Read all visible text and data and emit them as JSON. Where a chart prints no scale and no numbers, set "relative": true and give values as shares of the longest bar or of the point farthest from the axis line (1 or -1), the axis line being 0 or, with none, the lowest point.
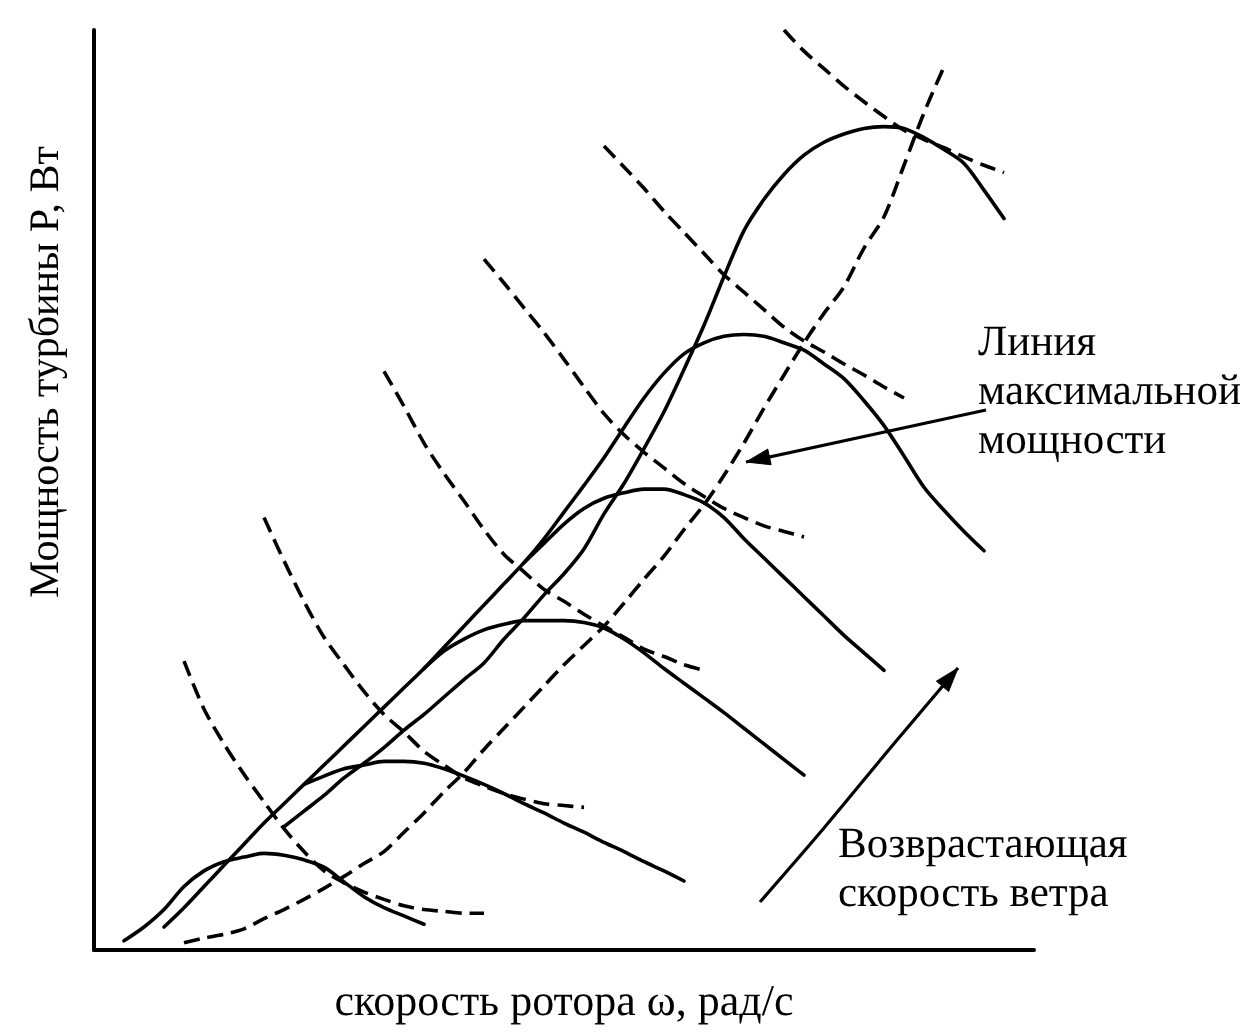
{
  "chart_data": {
    "type": "line",
    "relative": true,
    "xlabel": "скорость ротора ω, рад/с",
    "ylabel": "Мощность турбины P, Вт",
    "annotations": [
      "Линия максимальной мощности",
      "Возврастающая скорость ветра"
    ],
    "categories": [
      null,
      null,
      null,
      null,
      null,
      null,
      null,
      null,
      null,
      null,
      null,
      null,
      null,
      null,
      null,
      null,
      null,
      null,
      null,
      null,
      null,
      null,
      null,
      null,
      null,
      null,
      null,
      null,
      null,
      null,
      null,
      null,
      null,
      null,
      null,
      null,
      null,
      null,
      null,
      null,
      null,
      null,
      null,
      null,
      null,
      null,
      null
    ],
    "series": [
      {
        "color": "#000000",
        "line_style": "solid",
        "values": [
          null,
          0.01,
          0.025,
          0.044,
          0.069,
          0.086,
          0.096,
          0.101,
          0.105,
          0.103,
          0.098,
          0.09,
          0.074,
          0.058,
          0.046,
          0.037,
          0.028,
          null,
          null,
          null,
          null,
          null,
          null,
          null,
          null,
          null,
          null,
          null,
          null,
          null,
          null,
          null,
          null,
          null,
          null,
          null,
          null,
          null,
          null,
          null,
          null,
          null,
          null,
          null,
          null,
          null,
          null
        ]
      },
      {
        "color": "#000000",
        "line_style": "solid",
        "values": [
          null,
          null,
          null,
          null,
          null,
          null,
          null,
          null,
          null,
          null,
          0.18,
          0.189,
          0.197,
          0.201,
          0.205,
          0.205,
          0.203,
          0.197,
          0.189,
          0.18,
          0.17,
          0.159,
          0.149,
          0.138,
          0.128,
          0.117,
          0.107,
          0.096,
          0.086,
          0.075,
          null,
          null,
          null,
          null,
          null,
          null,
          null,
          null,
          null,
          null,
          null,
          null,
          null,
          null,
          null,
          null,
          null
        ]
      },
      {
        "color": "#000000",
        "line_style": "solid",
        "values": [
          null,
          null,
          null,
          null,
          null,
          null,
          null,
          null,
          null,
          null,
          null,
          null,
          null,
          null,
          null,
          null,
          0.306,
          0.325,
          0.338,
          0.348,
          0.354,
          0.358,
          0.358,
          0.358,
          0.356,
          0.35,
          0.338,
          0.323,
          0.306,
          0.29,
          0.274,
          0.258,
          0.241,
          0.224,
          0.207,
          0.19,
          null,
          null,
          null,
          null,
          null,
          null,
          null,
          null,
          null,
          null,
          null
        ]
      },
      {
        "color": "#000000",
        "line_style": "solid",
        "values": [
          null,
          null,
          null,
          null,
          null,
          null,
          null,
          null,
          null,
          null,
          null,
          null,
          null,
          null,
          null,
          null,
          null,
          null,
          null,
          null,
          null,
          0.421,
          0.442,
          0.463,
          0.48,
          0.491,
          0.497,
          0.501,
          0.501,
          0.495,
          0.486,
          0.47,
          0.447,
          0.426,
          0.405,
          0.384,
          0.363,
          0.342,
          0.323,
          0.304,
          null,
          null,
          null,
          null,
          null,
          null,
          null
        ]
      },
      {
        "color": "#000000",
        "line_style": "solid",
        "values": [
          null,
          null,
          null,
          0.025,
          0.046,
          0.069,
          0.092,
          0.115,
          0.138,
          0.159,
          0.18,
          0.201,
          0.222,
          0.243,
          0.264,
          0.285,
          0.306,
          0.329,
          0.352,
          0.375,
          0.398,
          0.421,
          0.447,
          0.476,
          0.505,
          0.535,
          0.568,
          0.6,
          0.627,
          0.648,
          0.66,
          0.667,
          0.669,
          0.667,
          0.66,
          0.652,
          0.637,
          0.621,
          0.597,
          0.57,
          0.537,
          0.503,
          0.478,
          0.455,
          0.434,
          null,
          null
        ]
      },
      {
        "color": "#000000",
        "line_style": "solid",
        "values": [
          null,
          null,
          null,
          null,
          null,
          null,
          null,
          null,
          null,
          0.134,
          0.151,
          0.168,
          0.187,
          0.203,
          0.22,
          0.239,
          0.256,
          0.275,
          0.294,
          0.312,
          0.338,
          0.361,
          0.386,
          0.409,
          0.436,
          0.474,
          0.507,
          0.545,
          0.585,
          0.631,
          0.679,
          0.732,
          0.782,
          0.816,
          0.843,
          0.864,
          0.878,
          0.887,
          0.893,
          0.895,
          0.893,
          0.883,
          0.87,
          0.855,
          0.826,
          0.795,
          null
        ]
      },
      {
        "color": "#000000",
        "line_style": "dashed",
        "values": [
          null,
          null,
          null,
          null,
          0.008,
          0.013,
          0.017,
          0.023,
          0.034,
          0.044,
          0.055,
          0.067,
          0.08,
          0.094,
          0.107,
          0.128,
          0.149,
          0.172,
          0.193,
          0.218,
          0.241,
          0.264,
          0.287,
          0.31,
          0.331,
          0.352,
          0.377,
          0.403,
          0.428,
          0.457,
          0.484,
          0.516,
          0.551,
          0.589,
          0.625,
          0.66,
          0.692,
          0.721,
          0.763,
          0.797,
          0.853,
          0.91,
          0.96,
          null,
          null,
          null,
          null
        ]
      },
      {
        "color": "#000000",
        "line_style": "dashed",
        "values": [
          null,
          null,
          null,
          null,
          0.314,
          0.262,
          0.224,
          0.191,
          0.161,
          0.132,
          0.107,
          0.086,
          0.073,
          0.063,
          0.055,
          0.048,
          0.044,
          0.042,
          0.04,
          0.04,
          null,
          null,
          null,
          null,
          null,
          null,
          null,
          null,
          null,
          null,
          null,
          null,
          null,
          null,
          null,
          null,
          null,
          null,
          null,
          null,
          null,
          null,
          null,
          null,
          null,
          null,
          null
        ]
      },
      {
        "color": "#000000",
        "line_style": "dashed",
        "values": [
          null,
          null,
          null,
          null,
          null,
          null,
          null,
          null,
          0.47,
          0.423,
          0.379,
          0.34,
          0.31,
          0.281,
          0.256,
          0.237,
          0.216,
          0.201,
          0.187,
          0.178,
          0.17,
          0.164,
          0.159,
          0.157,
          0.155,
          null,
          null,
          null,
          null,
          null,
          null,
          null,
          null,
          null,
          null,
          null,
          null,
          null,
          null,
          null,
          null,
          null,
          null,
          null,
          null,
          null,
          null
        ]
      },
      {
        "color": "#000000",
        "line_style": "dashed",
        "values": [
          null,
          null,
          null,
          null,
          null,
          null,
          null,
          null,
          null,
          null,
          null,
          null,
          null,
          null,
          0.629,
          0.591,
          0.551,
          0.518,
          0.488,
          0.457,
          0.43,
          0.411,
          0.392,
          0.379,
          0.365,
          0.352,
          0.34,
          0.327,
          0.319,
          0.31,
          0.304,
          null,
          null,
          null,
          null,
          null,
          null,
          null,
          null,
          null,
          null,
          null,
          null,
          null,
          null,
          null,
          null
        ]
      },
      {
        "color": "#000000",
        "line_style": "dashed",
        "values": [
          null,
          null,
          null,
          null,
          null,
          null,
          null,
          null,
          null,
          null,
          null,
          null,
          null,
          null,
          null,
          null,
          null,
          null,
          null,
          0.751,
          0.725,
          0.698,
          0.671,
          0.642,
          0.612,
          0.583,
          0.56,
          0.541,
          0.524,
          0.507,
          0.493,
          0.48,
          0.47,
          0.461,
          0.455,
          0.449,
          null,
          null,
          null,
          null,
          null,
          null,
          null,
          null,
          null,
          null,
          null
        ]
      },
      {
        "color": "#000000",
        "line_style": "dashed",
        "values": [
          null,
          null,
          null,
          null,
          null,
          null,
          null,
          null,
          null,
          null,
          null,
          null,
          null,
          null,
          null,
          null,
          null,
          null,
          null,
          null,
          null,
          null,
          null,
          null,
          null,
          0.874,
          0.851,
          0.828,
          0.803,
          0.78,
          0.757,
          0.734,
          0.715,
          0.696,
          0.677,
          0.662,
          0.65,
          0.637,
          0.625,
          0.612,
          0.6,
          null,
          null,
          null,
          null,
          null,
          null
        ]
      },
      {
        "color": "#000000",
        "line_style": "dashed",
        "values": [
          null,
          null,
          null,
          null,
          null,
          null,
          null,
          null,
          null,
          null,
          null,
          null,
          null,
          null,
          null,
          null,
          null,
          null,
          null,
          null,
          null,
          null,
          null,
          null,
          null,
          null,
          null,
          null,
          null,
          null,
          null,
          null,
          null,
          null,
          1.0,
          0.977,
          0.958,
          0.939,
          0.922,
          0.906,
          0.891,
          0.881,
          0.872,
          0.862,
          0.853,
          0.845,
          null
        ]
      }
    ]
  }
}
